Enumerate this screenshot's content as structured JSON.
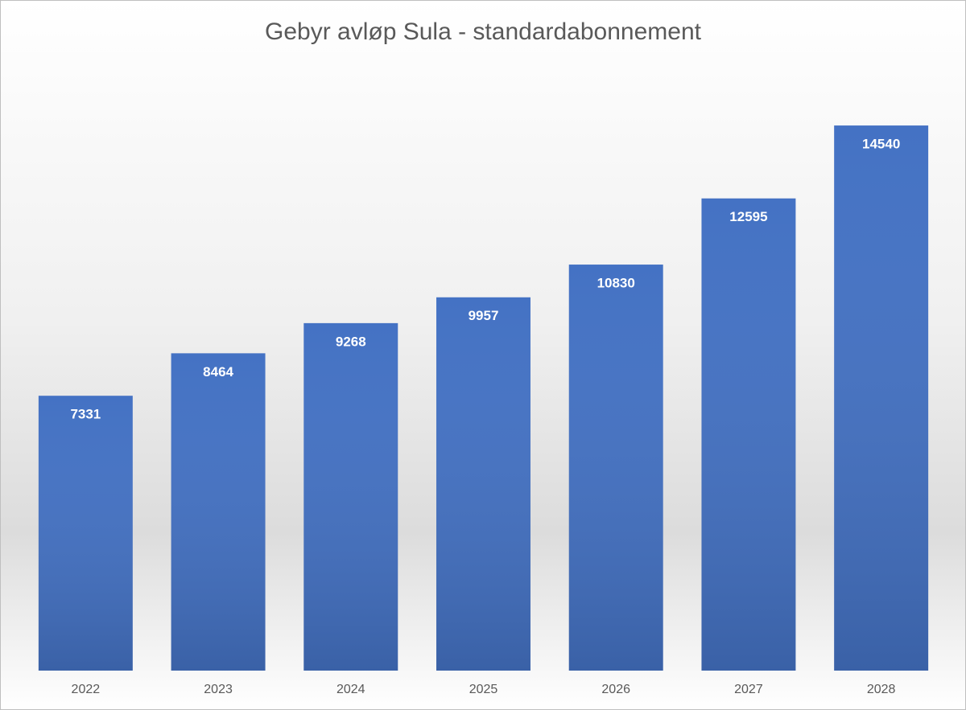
{
  "chart_data": {
    "type": "bar",
    "title": "Gebyr avløp Sula - standardabonnement",
    "categories": [
      "2022",
      "2023",
      "2024",
      "2025",
      "2026",
      "2027",
      "2028"
    ],
    "values": [
      7331,
      8464,
      9268,
      9957,
      10830,
      12595,
      14540
    ],
    "color": "#4472c4",
    "ylim": [
      0,
      16000
    ]
  }
}
